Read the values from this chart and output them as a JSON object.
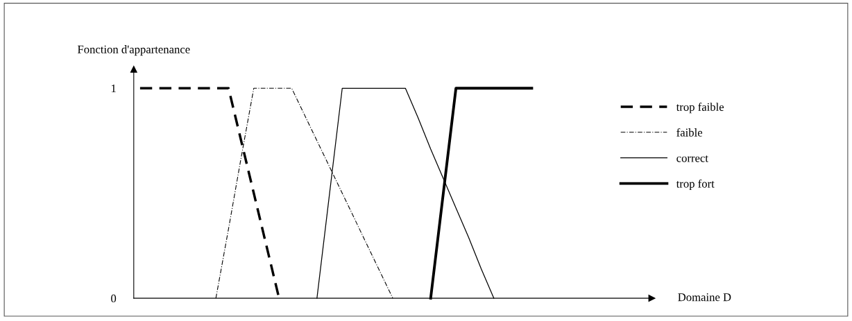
{
  "chart_data": {
    "type": "line",
    "xlabel": "Domaine D",
    "ylabel": "Fonction d'appartenance",
    "categories": [
      null,
      null,
      null,
      null,
      null,
      null,
      null,
      null,
      null,
      null,
      null,
      null,
      null,
      null,
      null,
      null,
      null,
      null,
      null,
      null,
      null,
      null,
      null,
      null,
      null,
      null,
      null,
      null,
      null,
      null,
      null,
      null,
      null,
      null,
      null,
      null,
      null,
      null,
      null,
      null,
      null
    ],
    "ylim": [
      0,
      1.09
    ],
    "yticks": [
      0,
      1
    ],
    "tick_labels": "y",
    "grid": false,
    "legend": "right",
    "marker": "none",
    "series": [
      {
        "name": "trop faible",
        "color": "#000000",
        "line_style": "dashed",
        "values": [
          1,
          1,
          1,
          1,
          1,
          1,
          1,
          1,
          0.75,
          0.5,
          0.25,
          0,
          null,
          null,
          null,
          null,
          null,
          null,
          null,
          null,
          null,
          null,
          null,
          null,
          null,
          null,
          null,
          null,
          null,
          null,
          null,
          null,
          null,
          null,
          null,
          null,
          null,
          null,
          null,
          null,
          null
        ]
      },
      {
        "name": "faible",
        "color": "#000000",
        "line_style": "dashdot",
        "values": [
          null,
          null,
          null,
          null,
          null,
          null,
          0,
          0.33,
          0.67,
          1,
          1,
          1,
          1,
          0.875,
          0.75,
          0.625,
          0.5,
          0.375,
          0.25,
          0.125,
          0,
          null,
          null,
          null,
          null,
          null,
          null,
          null,
          null,
          null,
          null,
          null,
          null,
          null,
          null,
          null,
          null,
          null,
          null,
          null,
          null
        ]
      },
      {
        "name": "correct",
        "color": "#000000",
        "line_style": "solid",
        "values": [
          null,
          null,
          null,
          null,
          null,
          null,
          null,
          null,
          null,
          null,
          null,
          null,
          null,
          null,
          0,
          0.5,
          1,
          1,
          1,
          1,
          1,
          1,
          0.86,
          0.71,
          0.57,
          0.43,
          0.29,
          0.14,
          0,
          null,
          null,
          null,
          null,
          null,
          null,
          null,
          null,
          null,
          null,
          null,
          null
        ]
      },
      {
        "name": "trop fort",
        "color": "#000000",
        "line_style": "solid",
        "values": [
          null,
          null,
          null,
          null,
          null,
          null,
          null,
          null,
          null,
          null,
          null,
          null,
          null,
          null,
          null,
          null,
          null,
          null,
          null,
          null,
          null,
          null,
          null,
          0,
          0.5,
          1,
          1,
          1,
          1,
          1,
          1,
          1,
          null,
          null,
          null,
          null,
          null,
          null,
          null,
          null,
          null
        ]
      }
    ]
  }
}
